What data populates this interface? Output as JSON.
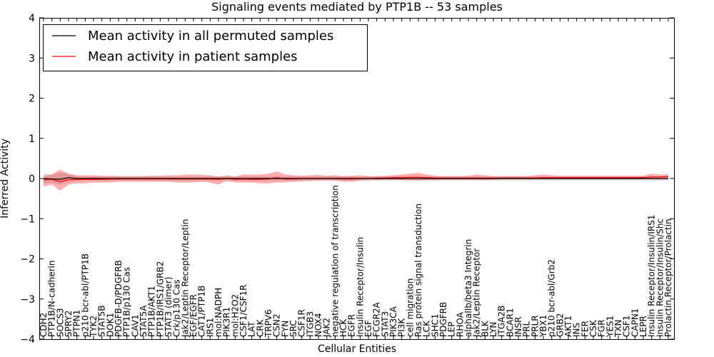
{
  "chart_data": {
    "type": "line",
    "title": "Signaling events mediated by PTP1B -- 53 samples",
    "xlabel": "Cellular Entities",
    "ylabel": "Inferred Activity",
    "ylim": [
      -4,
      4
    ],
    "yticks": [
      -4,
      -3,
      -2,
      -1,
      0,
      1,
      2,
      3,
      4
    ],
    "grid": false,
    "legend_position": "top-left",
    "categories": [
      "CDH2",
      "PTP1B/N-cadherin",
      "SOCS3",
      "SPRY2",
      "PTPN1",
      "p210 bcr-abl/PTP1B",
      "TYK2",
      "STAT5B",
      "DOK1",
      "PDGFB-D/PDGFRB",
      "PTP1B/p130 Cas",
      "CAV1",
      "STAT5A",
      "PTP1B/AKT1",
      "PTP1B/IRS1/GRB2",
      "STAT3 (dimer)",
      "Crk/p130 Cas",
      "Jak2/Leptin Receptor/Leptin",
      "EGF/EGFR",
      "CAT1/PTP1B",
      "IRS1",
      "mol:NADPH",
      "PIK3R1",
      "mol:H2O2",
      "CSF1/CSF1R",
      "LAT",
      "CRK",
      "TRPV6",
      "CSN2",
      "FYN",
      "SRC",
      "CSF1R",
      "ITGB3",
      "NOX4",
      "JAK2",
      "negative regulation of transcription",
      "HCK",
      "EGFR",
      "Insulin Receptor/Insulin",
      "EGF",
      "FCGR2A",
      "STAT3",
      "PIK3CA",
      "PI3K",
      "cell migration",
      "Ras protein signal transduction",
      "LCK",
      "SHC1",
      "PDGFRB",
      "LEP",
      "RHOA",
      "alphaIIb/beta3 Integrin",
      "Jak2/Leptin Receptor",
      "BLK",
      "LYN",
      "ITGA2B",
      "BCAR1",
      "INSR",
      "PRL",
      "PRLR",
      "YBX1",
      "p210 bcr-abl/Grb2",
      "GRB2",
      "AKT1",
      "INS",
      "FER",
      "CSK",
      "FGR",
      "YES1",
      "TXN",
      "CSF1",
      "CAPN1",
      "LEPR",
      "Insulin Receptor/Insulin/IRS1",
      "Insulin Receptor/Insulin/Shc",
      "Prolactin Receptor/Prolactin"
    ],
    "series": [
      {
        "name": "Mean activity in all permuted samples",
        "color": "#000000",
        "values": [
          0.0,
          -0.01,
          -0.02,
          0.02,
          0.0,
          0.0,
          0.0,
          0.0,
          0.0,
          0.0,
          0.0,
          0.0,
          0.0,
          0.0,
          0.0,
          0.0,
          0.0,
          0.0,
          0.0,
          0.0,
          0.0,
          0.0,
          0.0,
          0.0,
          0.0,
          0.0,
          0.0,
          0.0,
          0.0,
          0.0,
          0.0,
          0.0,
          0.0,
          0.0,
          0.0,
          0.0,
          0.0,
          0.0,
          0.0,
          0.0,
          0.0,
          0.0,
          0.0,
          0.0,
          0.0,
          0.0,
          0.0,
          0.0,
          0.0,
          0.0,
          0.0,
          0.0,
          0.0,
          0.0,
          0.0,
          0.0,
          0.0,
          0.0,
          0.0,
          0.0,
          0.0,
          0.0,
          0.0,
          0.0,
          0.0,
          0.0,
          0.0,
          0.0,
          0.0,
          0.0,
          0.0,
          0.0,
          0.0,
          0.0,
          0.0,
          0.0
        ],
        "lower": [
          -0.12,
          -0.1,
          -0.15,
          -0.08,
          -0.06,
          -0.05,
          -0.05,
          -0.05,
          -0.05,
          -0.05,
          -0.05,
          -0.05,
          -0.05,
          -0.05,
          -0.05,
          -0.05,
          -0.05,
          -0.05,
          -0.05,
          -0.05,
          -0.05,
          -0.05,
          -0.05,
          -0.05,
          -0.05,
          -0.05,
          -0.05,
          -0.05,
          -0.05,
          -0.05,
          -0.05,
          -0.05,
          -0.05,
          -0.05,
          -0.05,
          -0.05,
          -0.05,
          -0.05,
          -0.05,
          -0.05,
          -0.05,
          -0.05,
          -0.05,
          -0.05,
          -0.05,
          -0.05,
          -0.05,
          -0.05,
          -0.05,
          -0.05,
          -0.05,
          -0.05,
          -0.05,
          -0.05,
          -0.05,
          -0.05,
          -0.05,
          -0.05,
          -0.05,
          -0.05,
          -0.05,
          -0.05,
          -0.05,
          -0.05,
          -0.05,
          -0.05,
          -0.05,
          -0.05,
          -0.05,
          -0.05,
          -0.05,
          -0.05,
          -0.05,
          -0.05,
          -0.05,
          -0.05
        ],
        "upper": [
          0.12,
          0.1,
          0.15,
          0.1,
          0.06,
          0.05,
          0.05,
          0.05,
          0.05,
          0.05,
          0.05,
          0.05,
          0.05,
          0.05,
          0.05,
          0.05,
          0.05,
          0.05,
          0.05,
          0.05,
          0.05,
          0.05,
          0.05,
          0.05,
          0.05,
          0.05,
          0.05,
          0.05,
          0.05,
          0.05,
          0.05,
          0.05,
          0.05,
          0.05,
          0.05,
          0.05,
          0.05,
          0.05,
          0.05,
          0.05,
          0.05,
          0.05,
          0.05,
          0.05,
          0.05,
          0.05,
          0.05,
          0.05,
          0.05,
          0.05,
          0.05,
          0.05,
          0.05,
          0.05,
          0.05,
          0.05,
          0.05,
          0.05,
          0.05,
          0.05,
          0.05,
          0.05,
          0.05,
          0.05,
          0.05,
          0.05,
          0.05,
          0.05,
          0.05,
          0.05,
          0.05,
          0.05,
          0.05,
          0.05,
          0.05,
          0.05
        ]
      },
      {
        "name": "Mean activity in patient samples",
        "color": "#ff0000",
        "values": [
          -0.03,
          -0.02,
          -0.08,
          -0.03,
          -0.02,
          -0.02,
          -0.02,
          -0.02,
          -0.01,
          -0.01,
          -0.01,
          -0.01,
          -0.01,
          -0.01,
          -0.01,
          -0.01,
          -0.01,
          -0.01,
          -0.01,
          -0.01,
          -0.01,
          -0.02,
          0.0,
          -0.02,
          -0.01,
          -0.02,
          -0.02,
          -0.01,
          0.02,
          -0.01,
          -0.01,
          0.0,
          0.0,
          0.0,
          0.0,
          0.0,
          -0.01,
          -0.01,
          0.0,
          0.0,
          0.01,
          0.01,
          0.02,
          0.02,
          0.03,
          0.03,
          0.02,
          0.01,
          0.01,
          0.01,
          0.01,
          0.01,
          0.01,
          0.01,
          0.01,
          0.01,
          0.01,
          0.01,
          0.01,
          0.01,
          0.02,
          0.02,
          0.02,
          0.02,
          0.02,
          0.02,
          0.02,
          0.02,
          0.02,
          0.02,
          0.02,
          0.02,
          0.02,
          0.04,
          0.04,
          0.05
        ],
        "lower": [
          -0.2,
          -0.15,
          -0.3,
          -0.15,
          -0.12,
          -0.12,
          -0.1,
          -0.1,
          -0.1,
          -0.08,
          -0.08,
          -0.08,
          -0.08,
          -0.08,
          -0.08,
          -0.08,
          -0.1,
          -0.1,
          -0.1,
          -0.08,
          -0.1,
          -0.15,
          -0.06,
          -0.1,
          -0.1,
          -0.1,
          -0.12,
          -0.12,
          -0.1,
          -0.1,
          -0.08,
          -0.07,
          -0.06,
          -0.05,
          -0.05,
          -0.05,
          -0.08,
          -0.08,
          -0.05,
          -0.04,
          -0.04,
          -0.03,
          -0.03,
          -0.04,
          -0.05,
          -0.05,
          -0.04,
          -0.04,
          -0.03,
          -0.03,
          -0.03,
          -0.03,
          -0.03,
          -0.04,
          -0.03,
          -0.02,
          -0.02,
          -0.02,
          -0.02,
          -0.02,
          -0.02,
          -0.02,
          -0.02,
          -0.02,
          -0.02,
          -0.02,
          -0.02,
          -0.02,
          -0.02,
          -0.02,
          -0.02,
          -0.02,
          -0.02,
          -0.02,
          -0.02,
          -0.02
        ],
        "upper": [
          0.05,
          0.1,
          0.22,
          0.12,
          0.08,
          0.08,
          0.08,
          0.07,
          0.07,
          0.06,
          0.06,
          0.06,
          0.06,
          0.07,
          0.07,
          0.08,
          0.08,
          0.09,
          0.1,
          0.09,
          0.08,
          0.05,
          0.08,
          0.05,
          0.1,
          0.1,
          0.1,
          0.12,
          0.18,
          0.1,
          0.08,
          0.07,
          0.08,
          0.09,
          0.07,
          0.08,
          0.06,
          0.07,
          0.08,
          0.06,
          0.06,
          0.07,
          0.08,
          0.1,
          0.12,
          0.14,
          0.1,
          0.07,
          0.06,
          0.06,
          0.06,
          0.07,
          0.1,
          0.08,
          0.06,
          0.06,
          0.06,
          0.06,
          0.06,
          0.08,
          0.1,
          0.08,
          0.07,
          0.07,
          0.07,
          0.07,
          0.07,
          0.07,
          0.07,
          0.07,
          0.07,
          0.07,
          0.07,
          0.12,
          0.1,
          0.1
        ]
      }
    ]
  }
}
